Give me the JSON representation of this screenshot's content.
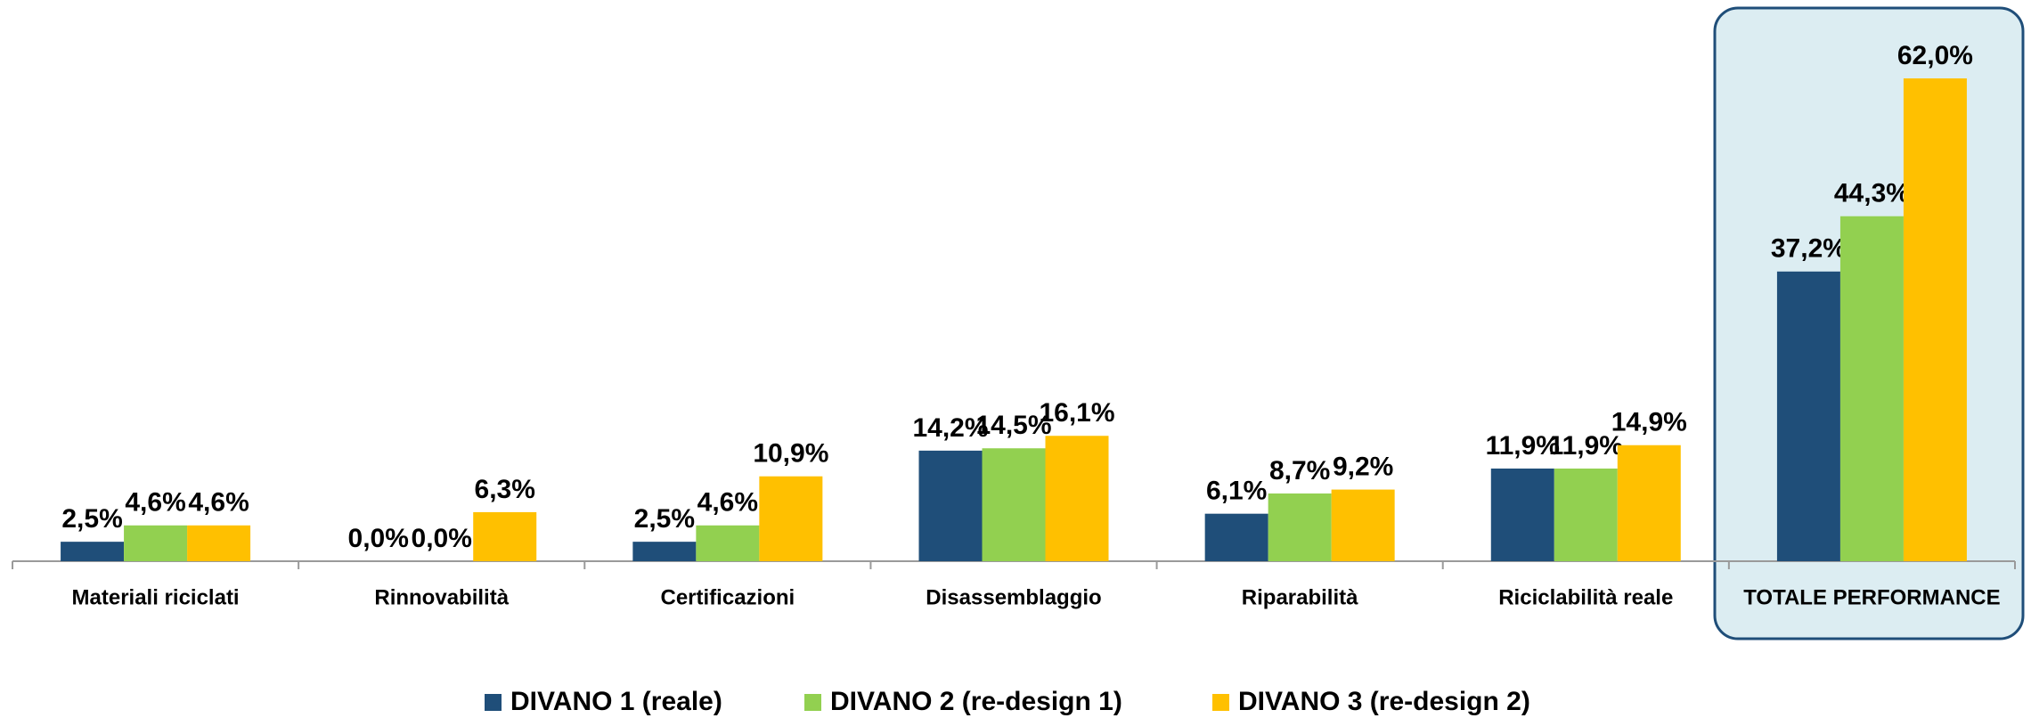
{
  "chart_data": {
    "type": "bar",
    "categories": [
      "Materiali riciclati",
      "Rinnovabilità",
      "Certificazioni",
      "Disassemblaggio",
      "Riparabilità",
      "Riciclabilità reale",
      "TOTALE PERFORMANCE"
    ],
    "series": [
      {
        "name": "DIVANO 1 (reale)",
        "color": "#1f4e79",
        "values": [
          2.5,
          0.0,
          2.5,
          14.2,
          6.1,
          11.9,
          37.2
        ],
        "value_labels": [
          "2,5%",
          "0,0%",
          "2,5%",
          "14,2%",
          "6,1%",
          "11,9%",
          "37,2%"
        ]
      },
      {
        "name": "DIVANO 2 (re-design 1)",
        "color": "#92d050",
        "values": [
          4.6,
          0.0,
          4.6,
          14.5,
          8.7,
          11.9,
          44.3
        ],
        "value_labels": [
          "4,6%",
          "0,0%",
          "4,6%",
          "14,5%",
          "8,7%",
          "11,9%",
          "44,3%"
        ]
      },
      {
        "name": "DIVANO 3 (re-design 2)",
        "color": "#ffc000",
        "values": [
          4.6,
          6.3,
          10.9,
          16.1,
          9.2,
          14.9,
          62.0
        ],
        "value_labels": [
          "4,6%",
          "6,3%",
          "10,9%",
          "16,1%",
          "9,2%",
          "14,9%",
          "62,0%"
        ]
      }
    ]
  }
}
